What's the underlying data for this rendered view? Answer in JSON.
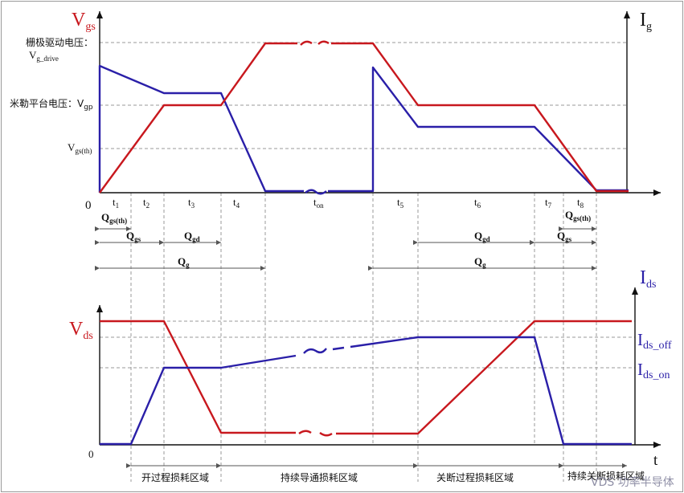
{
  "colors": {
    "gate_voltage_curve": "#c8181e",
    "gate_current_curve": "#2a1fa8",
    "text_dark": "#111111",
    "guide_lines": "#999999"
  },
  "top_chart": {
    "y_axis_left": {
      "name": "V",
      "sub": "gs"
    },
    "y_axis_right": {
      "name": "I",
      "sub": "g"
    },
    "origin": "0",
    "levels": {
      "gate_drive_label": "栅极驱动电压：",
      "gate_drive_name": "V",
      "gate_drive_sub": "g_drive",
      "miller_label": "米勒平台电压：V",
      "miller_sub": "gp",
      "threshold_name": "V",
      "threshold_sub": "gs(th)"
    },
    "time_labels": [
      {
        "name": "t",
        "sub": "1"
      },
      {
        "name": "t",
        "sub": "2"
      },
      {
        "name": "t",
        "sub": "3"
      },
      {
        "name": "t",
        "sub": "4"
      },
      {
        "name": "t",
        "sub": "on"
      },
      {
        "name": "t",
        "sub": "5"
      },
      {
        "name": "t",
        "sub": "6"
      },
      {
        "name": "t",
        "sub": "7"
      },
      {
        "name": "t",
        "sub": "8"
      }
    ]
  },
  "charges": {
    "qgs_th_left": {
      "name": "Q",
      "sub": "gs(th)"
    },
    "qgs_left": {
      "name": "Q",
      "sub": "gs"
    },
    "qgd_left": {
      "name": "Q",
      "sub": "gd"
    },
    "qg_left": {
      "name": "Q",
      "sub": "g"
    },
    "qgd_right": {
      "name": "Q",
      "sub": "gd"
    },
    "qgs_right": {
      "name": "Q",
      "sub": "gs"
    },
    "qgs_th_right": {
      "name": "Q",
      "sub": "gs(th)"
    },
    "qg_right": {
      "name": "Q",
      "sub": "g"
    }
  },
  "bottom_chart": {
    "y_axis_left": {
      "name": "V",
      "sub": "ds"
    },
    "y_axis_right": {
      "name": "I",
      "sub": "ds"
    },
    "origin": "0",
    "x_axis": "t",
    "ids_off": {
      "name": "I",
      "sub": "ds_off"
    },
    "ids_on": {
      "name": "I",
      "sub": "ds_on"
    }
  },
  "regions": {
    "turn_on_loss": "开过程损耗区域",
    "conduction_loss": "持续导通损耗区域",
    "turn_off_loss": "关断过程损耗区域",
    "blocking_loss": "持续关断损耗区域"
  },
  "watermark": "VDS 功率半导体"
}
